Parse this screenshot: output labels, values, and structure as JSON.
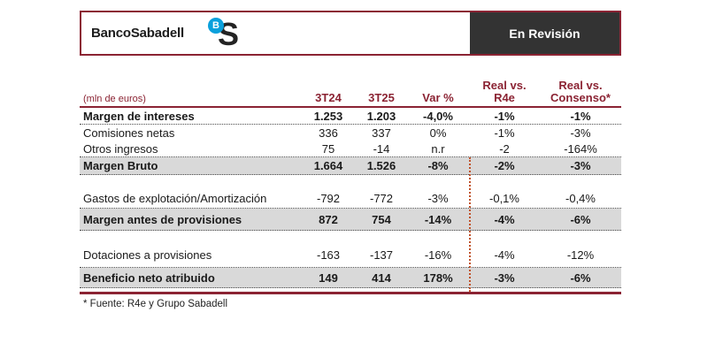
{
  "header": {
    "brand": "BancoSabadell",
    "logo_b": "B",
    "logo_s": "S",
    "status_badge": "En Revisión"
  },
  "table": {
    "unit_label": "(mln de euros)",
    "columns": {
      "c1": "3T24",
      "c2": "3T25",
      "c3": "Var %",
      "c4_line1": "Real vs.",
      "c4_line2": "R4e",
      "c5_line1": "Real vs.",
      "c5_line2": "Consenso*"
    },
    "rows": [
      {
        "label": "Margen de intereses",
        "v1": "1.253",
        "v2": "1.203",
        "v3": "-4,0%",
        "v4": "-1%",
        "v5": "-1%"
      },
      {
        "label": "Comisiones netas",
        "v1": "336",
        "v2": "337",
        "v3": "0%",
        "v4": "-1%",
        "v5": "-3%"
      },
      {
        "label": "Otros ingresos",
        "v1": "75",
        "v2": "-14",
        "v3": "n.r",
        "v4": "-2",
        "v5": "-164%"
      },
      {
        "label": "Margen Bruto",
        "v1": "1.664",
        "v2": "1.526",
        "v3": "-8%",
        "v4": "-2%",
        "v5": "-3%"
      },
      {
        "label": "Gastos de explotación/Amortización",
        "v1": "-792",
        "v2": "-772",
        "v3": "-3%",
        "v4": "-0,1%",
        "v5": "-0,4%"
      },
      {
        "label": "Margen antes de provisiones",
        "v1": "872",
        "v2": "754",
        "v3": "-14%",
        "v4": "-4%",
        "v5": "-6%"
      },
      {
        "label": "Dotaciones a provisiones",
        "v1": "-163",
        "v2": "-137",
        "v3": "-16%",
        "v4": "-4%",
        "v5": "-12%"
      },
      {
        "label": "Beneficio neto atribuido",
        "v1": "149",
        "v2": "414",
        "v3": "178%",
        "v4": "-3%",
        "v5": "-6%"
      }
    ],
    "footnote": "* Fuente: R4e y Grupo Sabadell"
  },
  "colors": {
    "maroon": "#8B2333",
    "badge_bg": "#333333",
    "row_highlight": "#D9D9D9",
    "logo_blue": "#0AA0DC",
    "divider_orange": "#C0522B"
  }
}
